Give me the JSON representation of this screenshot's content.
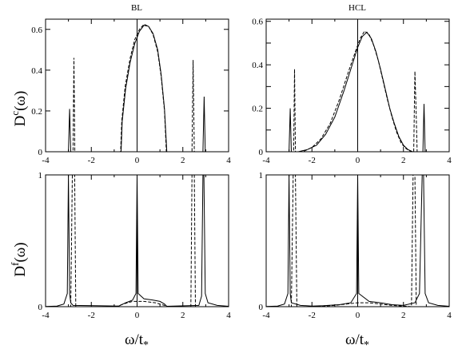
{
  "chart_data": [
    {
      "type": "line",
      "panel": "BL top",
      "title": "BL",
      "ylabel": {
        "main": "D",
        "sup": "c",
        "tail": "(ω)"
      },
      "xlabel": "",
      "xlim": [
        -4,
        4
      ],
      "ylim": [
        0,
        0.65
      ],
      "xticks": [
        -4,
        -2,
        0,
        2,
        4
      ],
      "yticks": [
        0,
        0.2,
        0.4,
        0.6
      ],
      "ytick_labels": [
        "0",
        "0.2",
        "0.4",
        "0.6"
      ],
      "series": [
        {
          "style": "solid",
          "points": [
            [
              -4,
              0
            ],
            [
              -3.0,
              0
            ],
            [
              -2.95,
              0.21
            ],
            [
              -2.9,
              0
            ],
            [
              -0.7,
              0
            ],
            [
              -0.65,
              0.15
            ],
            [
              -0.5,
              0.31
            ],
            [
              -0.3,
              0.44
            ],
            [
              -0.1,
              0.53
            ],
            [
              0.1,
              0.59
            ],
            [
              0.3,
              0.62
            ],
            [
              0.5,
              0.615
            ],
            [
              0.7,
              0.58
            ],
            [
              0.9,
              0.5
            ],
            [
              1.05,
              0.38
            ],
            [
              1.2,
              0.21
            ],
            [
              1.3,
              0
            ],
            [
              2.88,
              0
            ],
            [
              2.93,
              0.27
            ],
            [
              2.98,
              0
            ],
            [
              4,
              0
            ]
          ]
        },
        {
          "style": "dashed",
          "points": [
            [
              -4,
              0
            ],
            [
              -2.8,
              0
            ],
            [
              -2.76,
              0.46
            ],
            [
              -2.72,
              0
            ],
            [
              -0.72,
              0
            ],
            [
              -0.67,
              0.15
            ],
            [
              -0.52,
              0.32
            ],
            [
              -0.3,
              0.46
            ],
            [
              -0.1,
              0.55
            ],
            [
              0.1,
              0.6
            ],
            [
              0.3,
              0.625
            ],
            [
              0.5,
              0.615
            ],
            [
              0.7,
              0.575
            ],
            [
              0.9,
              0.49
            ],
            [
              1.05,
              0.37
            ],
            [
              1.2,
              0.2
            ],
            [
              1.28,
              0
            ],
            [
              2.4,
              0
            ],
            [
              2.45,
              0.45
            ],
            [
              2.5,
              0
            ],
            [
              4,
              0
            ]
          ]
        }
      ]
    },
    {
      "type": "line",
      "panel": "HCL top",
      "title": "HCL",
      "xlabel": "",
      "xlim": [
        -4,
        4
      ],
      "ylim": [
        0,
        0.61
      ],
      "xticks": [
        -4,
        -2,
        0,
        2,
        4
      ],
      "yticks": [
        0,
        0.1,
        0.2,
        0.3,
        0.4,
        0.5,
        0.6
      ],
      "ytick_labels": [
        "0",
        "0.2",
        "0.4",
        "0.6"
      ],
      "ytick_label_values": [
        0,
        0.2,
        0.4,
        0.6
      ],
      "series": [
        {
          "style": "solid",
          "points": [
            [
              -4,
              0
            ],
            [
              -3.0,
              0
            ],
            [
              -2.95,
              0.2
            ],
            [
              -2.9,
              0
            ],
            [
              -2.6,
              0
            ],
            [
              -2.2,
              0.01
            ],
            [
              -1.8,
              0.03
            ],
            [
              -1.4,
              0.08
            ],
            [
              -1.0,
              0.16
            ],
            [
              -0.6,
              0.28
            ],
            [
              -0.3,
              0.38
            ],
            [
              0.0,
              0.48
            ],
            [
              0.2,
              0.53
            ],
            [
              0.4,
              0.55
            ],
            [
              0.6,
              0.52
            ],
            [
              0.8,
              0.46
            ],
            [
              1.0,
              0.38
            ],
            [
              1.2,
              0.29
            ],
            [
              1.4,
              0.2
            ],
            [
              1.6,
              0.13
            ],
            [
              1.8,
              0.07
            ],
            [
              2.0,
              0.03
            ],
            [
              2.2,
              0.01
            ],
            [
              2.4,
              0
            ],
            [
              2.85,
              0
            ],
            [
              2.9,
              0.22
            ],
            [
              2.95,
              0
            ],
            [
              4,
              0
            ]
          ]
        },
        {
          "style": "dashed",
          "points": [
            [
              -4,
              0
            ],
            [
              -2.8,
              0
            ],
            [
              -2.76,
              0.38
            ],
            [
              -2.72,
              0
            ],
            [
              -2.4,
              0
            ],
            [
              -2.0,
              0.02
            ],
            [
              -1.6,
              0.06
            ],
            [
              -1.2,
              0.13
            ],
            [
              -0.8,
              0.24
            ],
            [
              -0.4,
              0.37
            ],
            [
              -0.1,
              0.46
            ],
            [
              0.1,
              0.52
            ],
            [
              0.3,
              0.555
            ],
            [
              0.5,
              0.54
            ],
            [
              0.7,
              0.49
            ],
            [
              0.9,
              0.42
            ],
            [
              1.1,
              0.33
            ],
            [
              1.3,
              0.24
            ],
            [
              1.5,
              0.16
            ],
            [
              1.7,
              0.09
            ],
            [
              1.9,
              0.04
            ],
            [
              2.1,
              0.015
            ],
            [
              2.35,
              0
            ],
            [
              2.45,
              0
            ],
            [
              2.5,
              0.37
            ],
            [
              2.55,
              0.2
            ],
            [
              2.6,
              0
            ],
            [
              4,
              0
            ]
          ]
        }
      ]
    },
    {
      "type": "line",
      "panel": "BL bottom",
      "ylabel": {
        "main": "D",
        "sup": "f",
        "tail": "(ω)"
      },
      "xlabel": {
        "main": "ω/t",
        "sub": "*"
      },
      "xlim": [
        -4,
        4
      ],
      "ylim": [
        0,
        1
      ],
      "xticks": [
        -4,
        -2,
        0,
        2,
        4
      ],
      "yticks": [
        0,
        1
      ],
      "ytick_labels": [
        "0",
        "1"
      ],
      "series": [
        {
          "style": "solid",
          "points": [
            [
              -4,
              0.002
            ],
            [
              -3.5,
              0.005
            ],
            [
              -3.2,
              0.02
            ],
            [
              -3.05,
              0.1
            ],
            [
              -3.0,
              1.0
            ],
            [
              -2.95,
              0.1
            ],
            [
              -2.9,
              0.03
            ],
            [
              -2.8,
              0.01
            ],
            [
              -0.8,
              0.005
            ],
            [
              -0.5,
              0.03
            ],
            [
              -0.2,
              0.05
            ],
            [
              -0.05,
              0.1
            ],
            [
              0.0,
              1.0
            ],
            [
              0.05,
              0.1
            ],
            [
              0.3,
              0.06
            ],
            [
              0.7,
              0.05
            ],
            [
              1.0,
              0.04
            ],
            [
              1.2,
              0.02
            ],
            [
              1.3,
              0.003
            ],
            [
              2.7,
              0.01
            ],
            [
              2.82,
              0.08
            ],
            [
              2.88,
              1.0
            ],
            [
              2.92,
              1.0
            ],
            [
              2.98,
              0.1
            ],
            [
              3.1,
              0.03
            ],
            [
              3.5,
              0.01
            ],
            [
              4,
              0.003
            ]
          ]
        },
        {
          "style": "dashed",
          "points": [
            [
              -4,
              0
            ],
            [
              -2.9,
              0
            ],
            [
              -2.83,
              1.0
            ],
            [
              -2.73,
              1.0
            ],
            [
              -2.68,
              0
            ],
            [
              -0.9,
              0
            ],
            [
              -0.6,
              0.02
            ],
            [
              -0.2,
              0.04
            ],
            [
              0.3,
              0.04
            ],
            [
              0.8,
              0.03
            ],
            [
              1.2,
              0.01
            ],
            [
              1.3,
              0
            ],
            [
              2.35,
              0
            ],
            [
              2.4,
              1.0
            ],
            [
              2.5,
              1.0
            ],
            [
              2.55,
              0
            ],
            [
              4,
              0
            ]
          ]
        }
      ]
    },
    {
      "type": "line",
      "panel": "HCL bottom",
      "xlabel": {
        "main": "ω/t",
        "sub": "*"
      },
      "xlim": [
        -4,
        4
      ],
      "ylim": [
        0,
        1
      ],
      "xticks": [
        -4,
        -2,
        0,
        2,
        4
      ],
      "yticks": [
        0,
        1
      ],
      "ytick_labels": [
        "0",
        "1"
      ],
      "series": [
        {
          "style": "solid",
          "points": [
            [
              -4,
              0.002
            ],
            [
              -3.5,
              0.005
            ],
            [
              -3.2,
              0.02
            ],
            [
              -3.05,
              0.1
            ],
            [
              -3.0,
              1.0
            ],
            [
              -2.95,
              0.1
            ],
            [
              -2.9,
              0.03
            ],
            [
              -2.5,
              0.01
            ],
            [
              -2.0,
              0.005
            ],
            [
              -1.5,
              0.008
            ],
            [
              -0.8,
              0.015
            ],
            [
              -0.3,
              0.03
            ],
            [
              -0.05,
              0.1
            ],
            [
              0.0,
              1.0
            ],
            [
              0.05,
              0.1
            ],
            [
              0.5,
              0.04
            ],
            [
              1.0,
              0.03
            ],
            [
              1.5,
              0.015
            ],
            [
              2.0,
              0.01
            ],
            [
              2.5,
              0.03
            ],
            [
              2.7,
              0.1
            ],
            [
              2.82,
              1.0
            ],
            [
              2.88,
              1.0
            ],
            [
              2.95,
              0.1
            ],
            [
              3.1,
              0.03
            ],
            [
              3.5,
              0.01
            ],
            [
              4,
              0.003
            ]
          ]
        },
        {
          "style": "dashed",
          "points": [
            [
              -4,
              0
            ],
            [
              -2.9,
              0
            ],
            [
              -2.82,
              1.0
            ],
            [
              -2.72,
              1.0
            ],
            [
              -2.66,
              0
            ],
            [
              -2.0,
              0
            ],
            [
              -1.0,
              0.01
            ],
            [
              -0.5,
              0.02
            ],
            [
              0.0,
              0.03
            ],
            [
              0.5,
              0.03
            ],
            [
              1.0,
              0.02
            ],
            [
              1.5,
              0.01
            ],
            [
              2.0,
              0.005
            ],
            [
              2.35,
              0
            ],
            [
              2.42,
              1.0
            ],
            [
              2.5,
              1.0
            ],
            [
              2.56,
              0
            ],
            [
              4,
              0
            ]
          ]
        }
      ]
    }
  ]
}
